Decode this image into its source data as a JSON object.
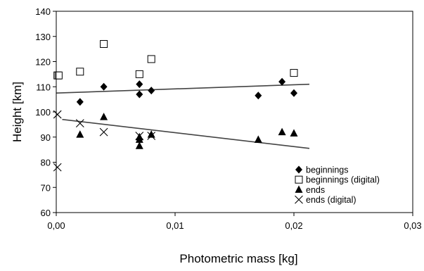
{
  "chart_data": {
    "type": "scatter",
    "title": "",
    "xlabel": "Photometric mass [kg]",
    "ylabel": "Height [km]",
    "xlim": [
      0,
      0.03
    ],
    "ylim": [
      60,
      140
    ],
    "x_ticks": [
      0,
      0.01,
      0.02,
      0.03
    ],
    "x_tick_labels": [
      "0,00",
      "0,01",
      "0,02",
      "0,03"
    ],
    "y_ticks": [
      60,
      70,
      80,
      90,
      100,
      110,
      120,
      130,
      140
    ],
    "y_tick_labels": [
      "60",
      "70",
      "80",
      "90",
      "100",
      "110",
      "120",
      "130",
      "140"
    ],
    "grid": false,
    "legend_position": "bottom-right",
    "series": [
      {
        "name": "beginnings",
        "marker": "diamond",
        "color": "#000000",
        "points": [
          [
            0.002,
            104
          ],
          [
            0.004,
            110
          ],
          [
            0.007,
            111
          ],
          [
            0.007,
            107
          ],
          [
            0.008,
            108.5
          ],
          [
            0.017,
            106.5
          ],
          [
            0.019,
            112
          ],
          [
            0.02,
            107.5
          ]
        ]
      },
      {
        "name": "beginnings (digital)",
        "marker": "square-open",
        "color": "#000000",
        "points": [
          [
            0.0001,
            114.5
          ],
          [
            0.0002,
            114.5
          ],
          [
            0.002,
            116
          ],
          [
            0.004,
            127
          ],
          [
            0.007,
            115
          ],
          [
            0.008,
            121
          ],
          [
            0.02,
            115.5
          ]
        ]
      },
      {
        "name": "ends",
        "marker": "triangle",
        "color": "#000000",
        "points": [
          [
            0.002,
            91
          ],
          [
            0.004,
            98
          ],
          [
            0.007,
            90
          ],
          [
            0.007,
            89
          ],
          [
            0.007,
            86.5
          ],
          [
            0.008,
            91
          ],
          [
            0.017,
            89
          ],
          [
            0.019,
            92
          ],
          [
            0.02,
            91.5
          ]
        ]
      },
      {
        "name": "ends (digital)",
        "marker": "x",
        "color": "#000000",
        "points": [
          [
            0.0001,
            99
          ],
          [
            0.0001,
            78
          ],
          [
            0.002,
            95.5
          ],
          [
            0.004,
            92
          ],
          [
            0.007,
            90.5
          ],
          [
            0.008,
            90.5
          ]
        ]
      }
    ],
    "trendlines": [
      {
        "x": [
          0.0,
          0.0213
        ],
        "y": [
          107.5,
          111
        ]
      },
      {
        "x": [
          0.0005,
          0.0213
        ],
        "y": [
          97,
          85.5
        ]
      }
    ]
  }
}
